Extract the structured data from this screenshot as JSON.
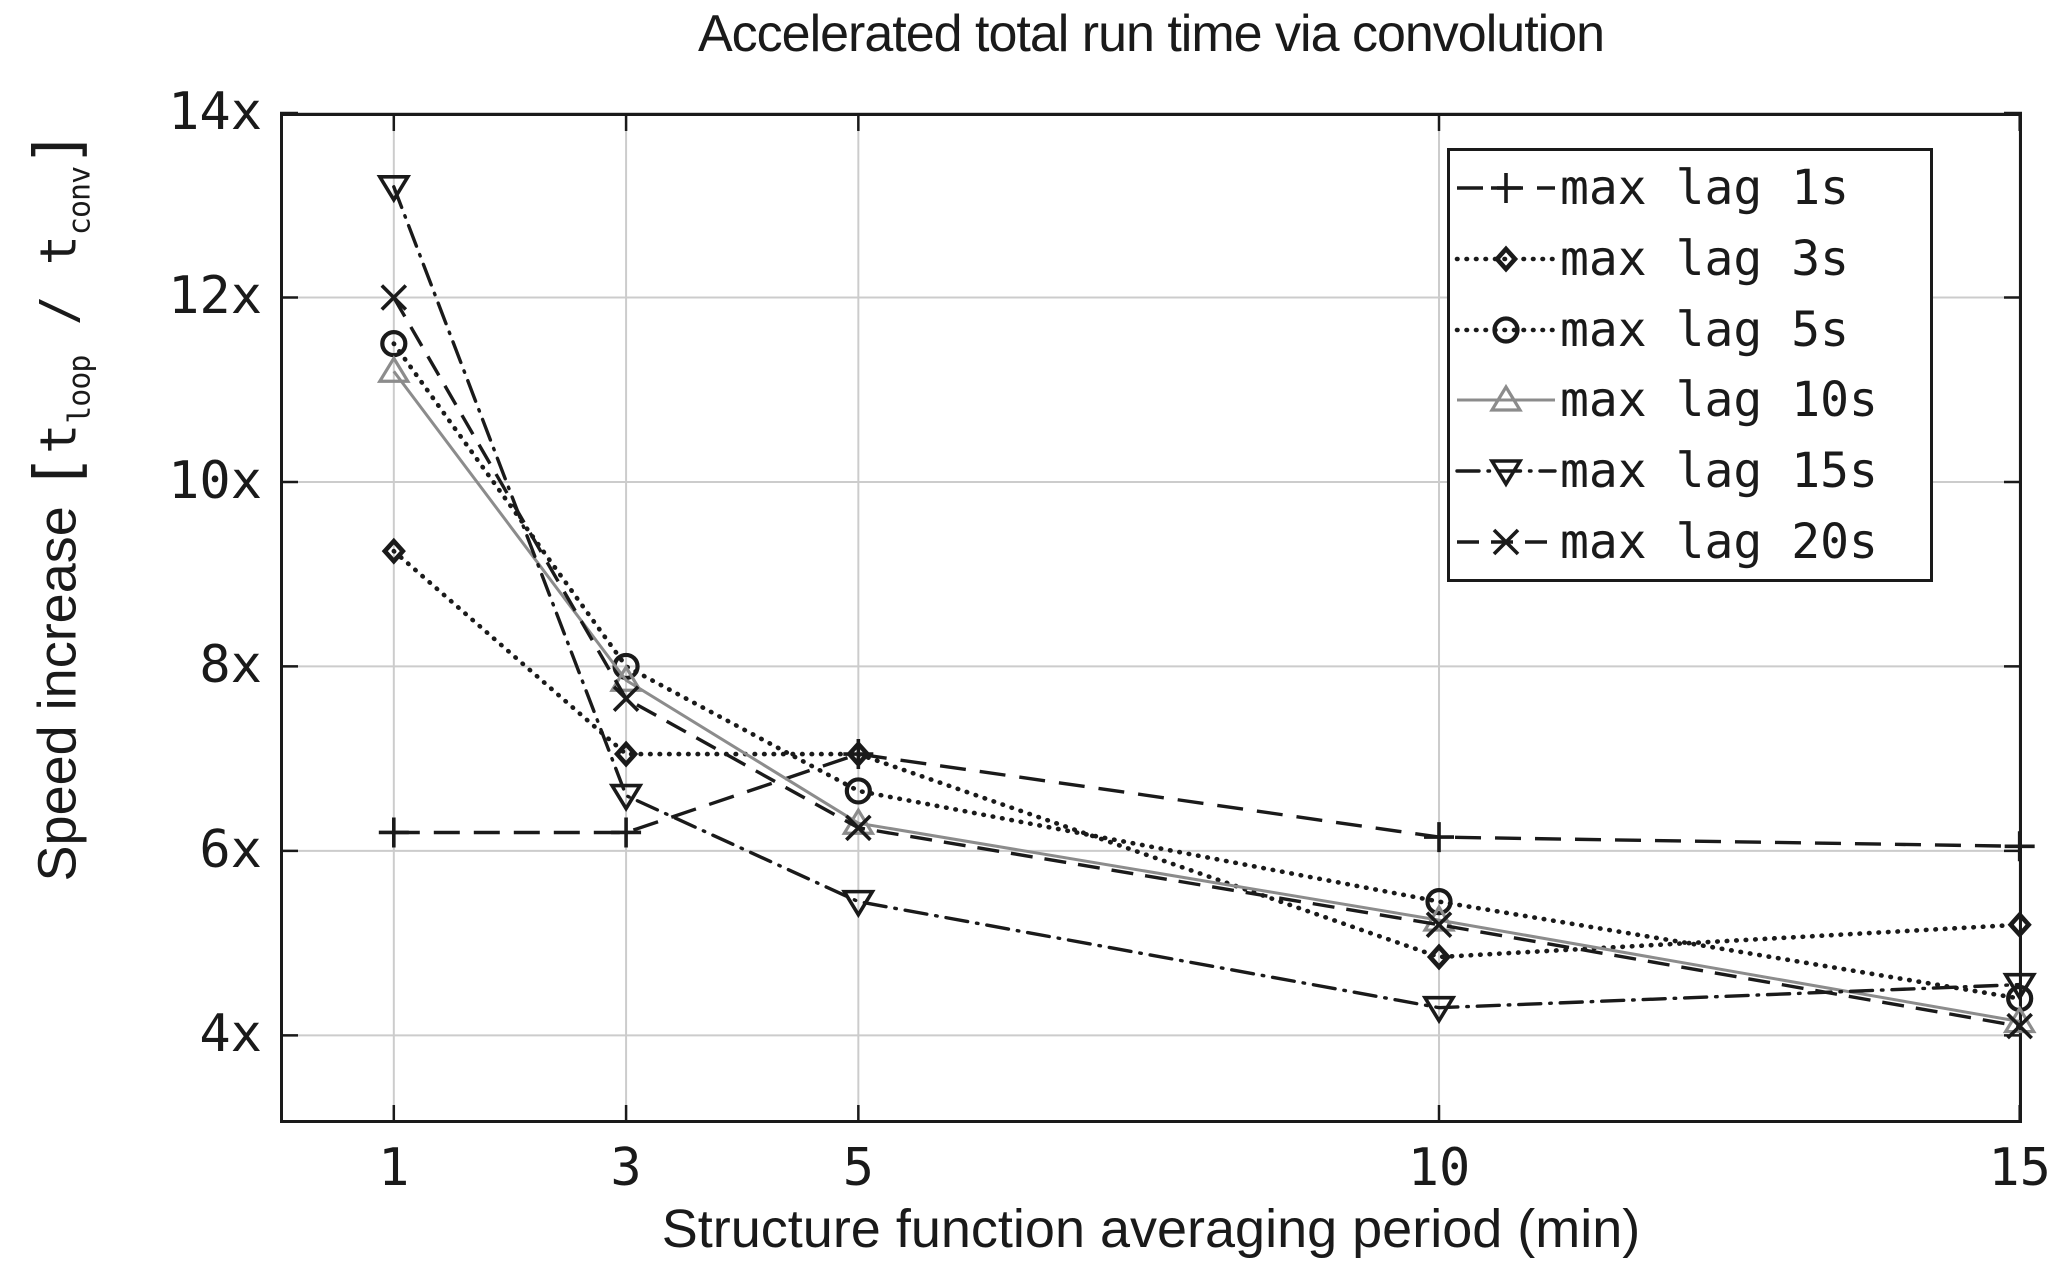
{
  "figure": {
    "background": "#ffffff"
  },
  "ylabel_parts": {
    "main": "Speed increase ",
    "open_bracket": "[",
    "t1": "t",
    "sub_loop": "loop",
    "divider": " / ",
    "t2": "t",
    "sub_conv": "conv",
    "close_bracket": "]"
  },
  "chart_data": {
    "type": "line",
    "title": "Accelerated total run time via convolution",
    "xlabel": "Structure function averaging period (min)",
    "ylabel": "Speed increase [t_loop / t_conv]",
    "x": [
      1,
      3,
      5,
      10,
      15
    ],
    "xticks": [
      1,
      3,
      5,
      10,
      15
    ],
    "yticks": [
      4,
      6,
      8,
      10,
      12,
      14
    ],
    "ytick_suffix": "x",
    "xlim": [
      0.02,
      15.02
    ],
    "ylim": [
      3.05,
      14
    ],
    "grid": true,
    "grid_color": "#cccccc",
    "axis_color": "#1a1a1a",
    "legend_position": "top-right",
    "series": [
      {
        "name": "max lag 1s",
        "marker": "plus",
        "line": "dashed",
        "color": "#1a1a1a",
        "values": [
          6.2,
          6.2,
          7.05,
          6.15,
          6.05
        ]
      },
      {
        "name": "max lag 3s",
        "marker": "diamond",
        "line": "dotted",
        "color": "#1a1a1a",
        "values": [
          9.25,
          7.05,
          7.05,
          4.85,
          5.2
        ]
      },
      {
        "name": "max lag 5s",
        "marker": "circle",
        "line": "dotted",
        "color": "#1a1a1a",
        "values": [
          11.5,
          8.0,
          6.65,
          5.45,
          4.4
        ]
      },
      {
        "name": "max lag 10s",
        "marker": "triangle-up",
        "line": "solid",
        "color": "#8c8c8c",
        "values": [
          11.2,
          7.85,
          6.3,
          5.25,
          4.15
        ]
      },
      {
        "name": "max lag 15s",
        "marker": "triangle-down",
        "line": "dashdot",
        "color": "#1a1a1a",
        "values": [
          13.2,
          6.6,
          5.45,
          4.3,
          4.55
        ]
      },
      {
        "name": "max lag 20s",
        "marker": "x",
        "line": "dashed2",
        "color": "#1a1a1a",
        "values": [
          12.0,
          7.65,
          6.25,
          5.2,
          4.1
        ]
      }
    ]
  }
}
